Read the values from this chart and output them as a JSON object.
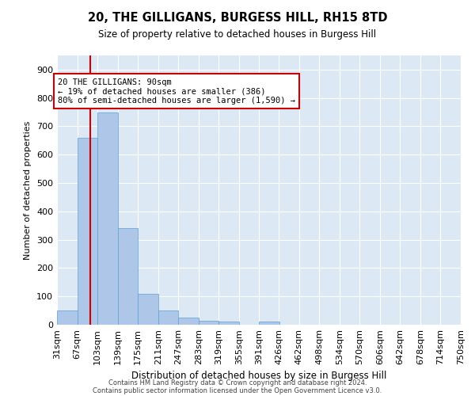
{
  "title1": "20, THE GILLIGANS, BURGESS HILL, RH15 8TD",
  "title2": "Size of property relative to detached houses in Burgess Hill",
  "xlabel": "Distribution of detached houses by size in Burgess Hill",
  "ylabel": "Number of detached properties",
  "bar_values": [
    50,
    660,
    750,
    340,
    110,
    50,
    25,
    15,
    10,
    0,
    10,
    0,
    0,
    0,
    0,
    0,
    0,
    0,
    0,
    0
  ],
  "bin_edges": [
    31,
    67,
    103,
    139,
    175,
    211,
    247,
    283,
    319,
    355,
    391,
    426,
    462,
    498,
    534,
    570,
    606,
    642,
    678,
    714,
    750
  ],
  "bar_color": "#aec6e8",
  "bar_edge_color": "#5a9fd4",
  "property_size": 90,
  "red_line_color": "#cc0000",
  "annotation_line1": "20 THE GILLIGANS: 90sqm",
  "annotation_line2": "← 19% of detached houses are smaller (386)",
  "annotation_line3": "80% of semi-detached houses are larger (1,590) →",
  "annotation_box_color": "#cc0000",
  "ylim": [
    0,
    950
  ],
  "yticks": [
    0,
    100,
    200,
    300,
    400,
    500,
    600,
    700,
    800,
    900
  ],
  "background_color": "#dce9f5",
  "grid_color": "#ffffff",
  "footer1": "Contains HM Land Registry data © Crown copyright and database right 2024.",
  "footer2": "Contains public sector information licensed under the Open Government Licence v3.0."
}
